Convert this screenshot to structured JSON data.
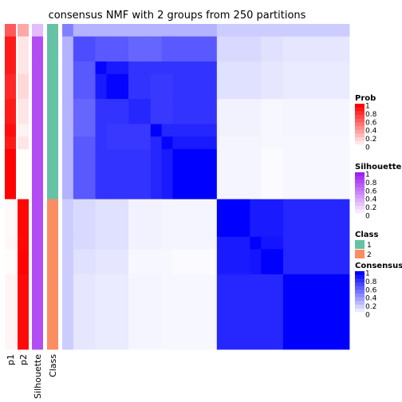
{
  "chart_data": {
    "type": "heatmap",
    "title": "consensus NMF with 2 groups from 250 partitions",
    "annotation_tracks": [
      "p1",
      "p2",
      "Silhouette",
      "Class"
    ],
    "class_colors": {
      "1": "#66C2A5",
      "2": "#FC8D62"
    },
    "row_groups": [
      {
        "size": 1,
        "class": "1",
        "p1": 0.65,
        "p2": 0.35,
        "silhouette": 0.3
      },
      {
        "size": 2,
        "class": "1",
        "p1": 0.9,
        "p2": 0.1,
        "silhouette": 0.8
      },
      {
        "size": 1,
        "class": "1",
        "p1": 0.9,
        "p2": 0.1,
        "silhouette": 0.8
      },
      {
        "size": 2,
        "class": "1",
        "p1": 0.85,
        "p2": 0.15,
        "silhouette": 0.8
      },
      {
        "size": 2,
        "class": "1",
        "p1": 0.9,
        "p2": 0.1,
        "silhouette": 0.8
      },
      {
        "size": 1,
        "class": "1",
        "p1": 0.95,
        "p2": 0.05,
        "silhouette": 0.8
      },
      {
        "size": 1,
        "class": "1",
        "p1": 0.9,
        "p2": 0.1,
        "silhouette": 0.8
      },
      {
        "size": 4,
        "class": "1",
        "p1": 0.99,
        "p2": 0.01,
        "silhouette": 0.8
      },
      {
        "size": 3,
        "class": "2",
        "p1": 0.02,
        "p2": 0.98,
        "silhouette": 0.8
      },
      {
        "size": 1,
        "class": "2",
        "p1": 0.03,
        "p2": 0.97,
        "silhouette": 0.8
      },
      {
        "size": 2,
        "class": "2",
        "p1": 0.01,
        "p2": 0.99,
        "silhouette": 0.8
      },
      {
        "size": 6,
        "class": "2",
        "p1": 0.04,
        "p2": 0.96,
        "silhouette": 0.8
      }
    ],
    "consensus_matrix": [
      [
        0.5,
        0.3,
        0.3,
        0.3,
        0.3,
        0.3,
        0.3,
        0.3,
        0.2,
        0.2,
        0.2,
        0.2
      ],
      [
        0.3,
        0.7,
        0.65,
        0.65,
        0.6,
        0.6,
        0.65,
        0.65,
        0.15,
        0.15,
        0.12,
        0.1
      ],
      [
        0.3,
        0.65,
        0.98,
        0.9,
        0.8,
        0.8,
        0.8,
        0.8,
        0.12,
        0.12,
        0.1,
        0.08
      ],
      [
        0.3,
        0.65,
        0.9,
        0.98,
        0.8,
        0.78,
        0.78,
        0.8,
        0.12,
        0.12,
        0.1,
        0.08
      ],
      [
        0.3,
        0.6,
        0.8,
        0.8,
        0.85,
        0.78,
        0.78,
        0.8,
        0.05,
        0.05,
        0.03,
        0.04
      ],
      [
        0.3,
        0.6,
        0.8,
        0.78,
        0.78,
        1.0,
        0.85,
        0.85,
        0.05,
        0.05,
        0.03,
        0.04
      ],
      [
        0.3,
        0.65,
        0.8,
        0.78,
        0.78,
        0.85,
        0.98,
        0.9,
        0.04,
        0.04,
        0.03,
        0.03
      ],
      [
        0.3,
        0.65,
        0.8,
        0.8,
        0.8,
        0.85,
        0.9,
        1.0,
        0.04,
        0.04,
        0.02,
        0.03
      ],
      [
        0.2,
        0.15,
        0.12,
        0.12,
        0.05,
        0.05,
        0.04,
        0.04,
        1.0,
        0.9,
        0.9,
        0.85
      ],
      [
        0.2,
        0.15,
        0.12,
        0.12,
        0.05,
        0.05,
        0.04,
        0.04,
        0.9,
        1.0,
        0.92,
        0.85
      ],
      [
        0.2,
        0.12,
        0.1,
        0.1,
        0.03,
        0.03,
        0.03,
        0.02,
        0.9,
        0.92,
        1.0,
        0.85
      ],
      [
        0.2,
        0.1,
        0.08,
        0.08,
        0.04,
        0.04,
        0.03,
        0.03,
        0.85,
        0.85,
        0.85,
        1.0
      ]
    ],
    "legends": {
      "prob": {
        "title": "Prob",
        "ticks": [
          "1",
          "0.8",
          "0.6",
          "0.4",
          "0.2",
          "0"
        ],
        "color": "#FF0000"
      },
      "silhouette": {
        "title": "Silhouette",
        "ticks": [
          "1",
          "0.8",
          "0.6",
          "0.4",
          "0.2",
          "0"
        ],
        "color": "#A020F0"
      },
      "class": {
        "title": "Class",
        "entries": [
          "1",
          "2"
        ]
      },
      "consensus": {
        "title": "Consensus",
        "ticks": [
          "1",
          "0.8",
          "0.6",
          "0.4",
          "0.2",
          "0"
        ],
        "color": "#0000FF"
      }
    },
    "legend_placement": "right"
  }
}
